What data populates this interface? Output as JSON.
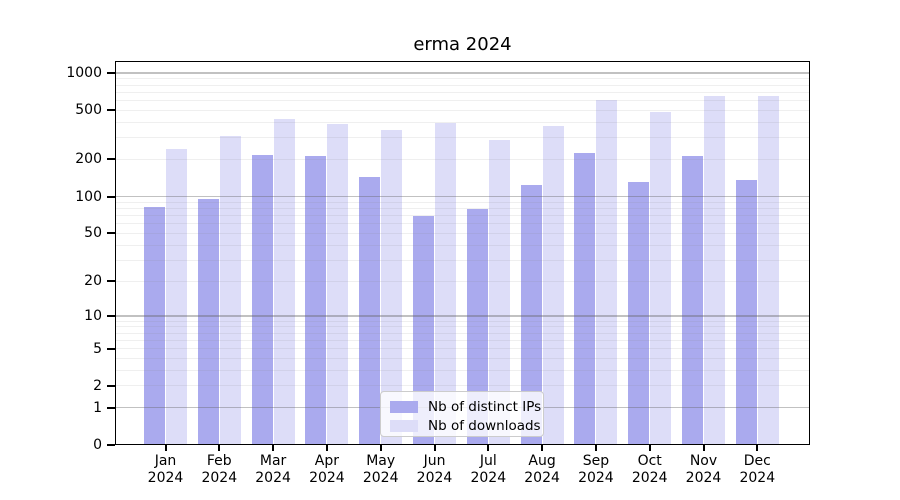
{
  "chart_data": {
    "type": "bar",
    "title": "erma 2024",
    "x_tick_months": [
      "Jan",
      "Feb",
      "Mar",
      "Apr",
      "May",
      "Jun",
      "Jul",
      "Aug",
      "Sep",
      "Oct",
      "Nov",
      "Dec"
    ],
    "x_tick_year": "2024",
    "series": [
      {
        "name": "Nb of distinct IPs",
        "color": "#aaaaee",
        "values": [
          82,
          95,
          216,
          215,
          143,
          69,
          79,
          125,
          225,
          130,
          214,
          137
        ]
      },
      {
        "name": "Nb of downloads",
        "color": "#ddddf8",
        "values": [
          245,
          310,
          424,
          388,
          345,
          396,
          290,
          370,
          610,
          480,
          650,
          650
        ]
      }
    ],
    "y_axis": {
      "scale": "log10(value+1)",
      "tick_labels": [
        "1000",
        "500",
        "200",
        "100",
        "50",
        "20",
        "10",
        "5",
        "2",
        "1",
        "0"
      ],
      "tick_values": [
        1000,
        500,
        200,
        100,
        50,
        20,
        10,
        5,
        2,
        1,
        0
      ],
      "major_gridlines": [
        1,
        10,
        100,
        1000
      ],
      "minor_gridlines": [
        2,
        3,
        4,
        5,
        6,
        7,
        8,
        9,
        20,
        30,
        40,
        50,
        60,
        70,
        80,
        90,
        200,
        300,
        400,
        500,
        600,
        700,
        800,
        900
      ],
      "ylim": [
        0,
        1230
      ]
    },
    "legend": {
      "position": "lower center",
      "labels": [
        "Nb of distinct IPs",
        "Nb of downloads"
      ]
    },
    "grid": "on",
    "colors": {
      "spine": "#000000",
      "major_grid": "rgba(100,100,100,0.40)",
      "minor_grid": "rgba(130,130,130,0.13)",
      "background": "#ffffff"
    }
  }
}
